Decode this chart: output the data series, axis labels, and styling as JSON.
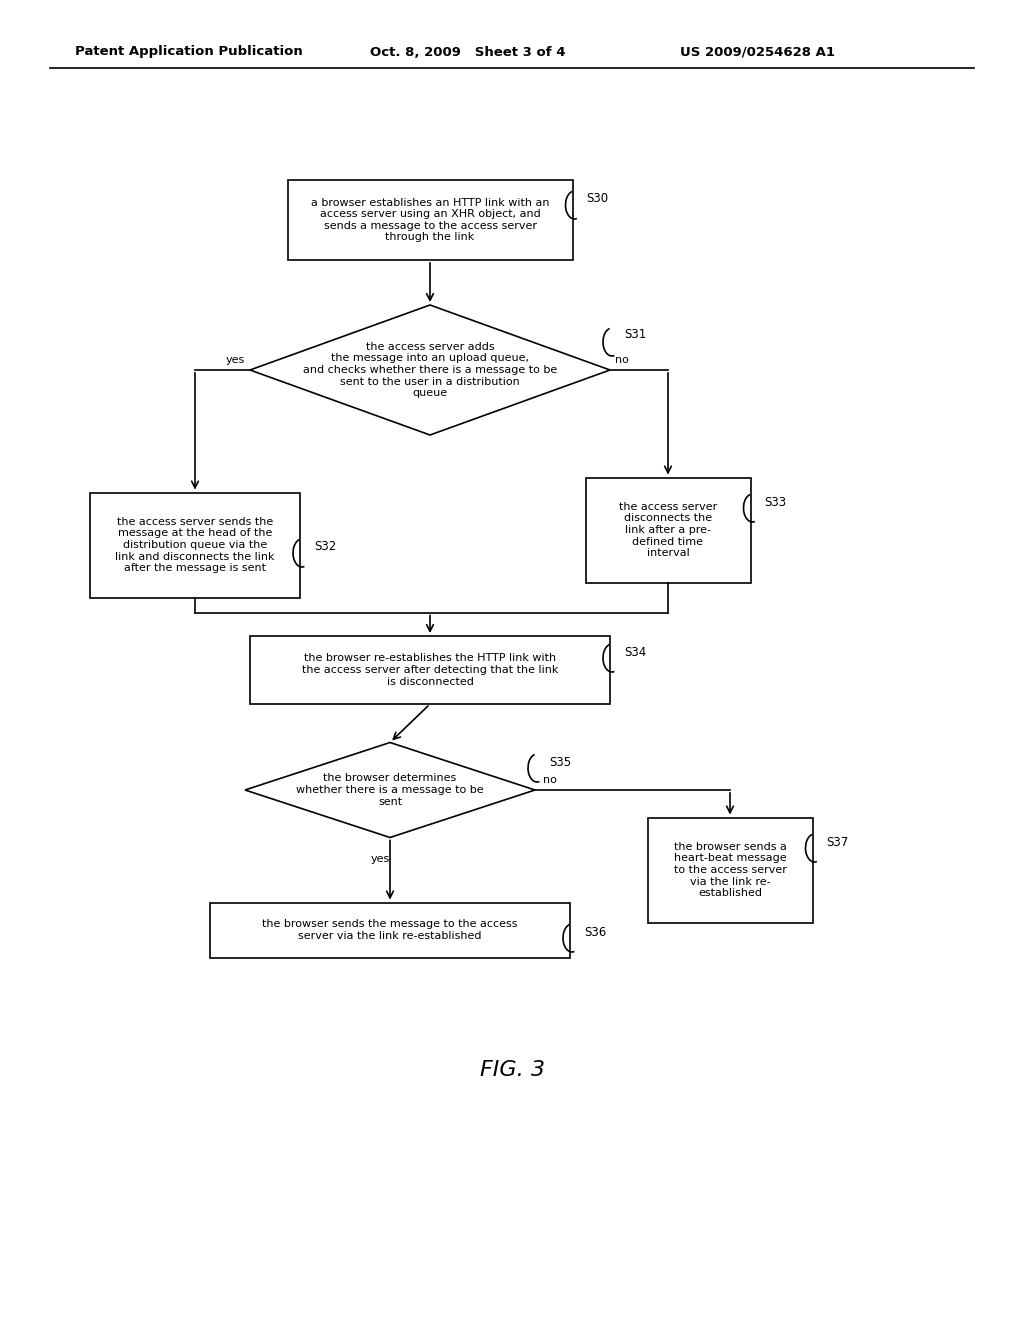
{
  "background_color": "#ffffff",
  "header_left": "Patent Application Publication",
  "header_mid": "Oct. 8, 2009   Sheet 3 of 4",
  "header_right": "US 2009/0254628 A1",
  "figure_label": "FIG. 3",
  "s30_text": "a browser establishes an HTTP link with an\naccess server using an XHR object, and\nsends a message to the access server\nthrough the link",
  "s31_text": "the access server adds\nthe message into an upload queue,\nand checks whether there is a message to be\nsent to the user in a distribution\nqueue",
  "s32_text": "the access server sends the\nmessage at the head of the\ndistribution queue via the\nlink and disconnects the link\nafter the message is sent",
  "s33_text": "the access server\ndisconnects the\nlink after a pre-\ndefined time\ninterval",
  "s34_text": "the browser re-establishes the HTTP link with\nthe access server after detecting that the link\nis disconnected",
  "s35_text": "the browser determines\nwhether there is a message to be\nsent",
  "s36_text": "the browser sends the message to the access\nserver via the link re-established",
  "s37_text": "the browser sends a\nheart-beat message\nto the access server\nvia the link re-\nestablished",
  "font_size_node": 8,
  "font_size_label": 8.5,
  "font_size_header": 9.5,
  "font_size_fig": 16
}
